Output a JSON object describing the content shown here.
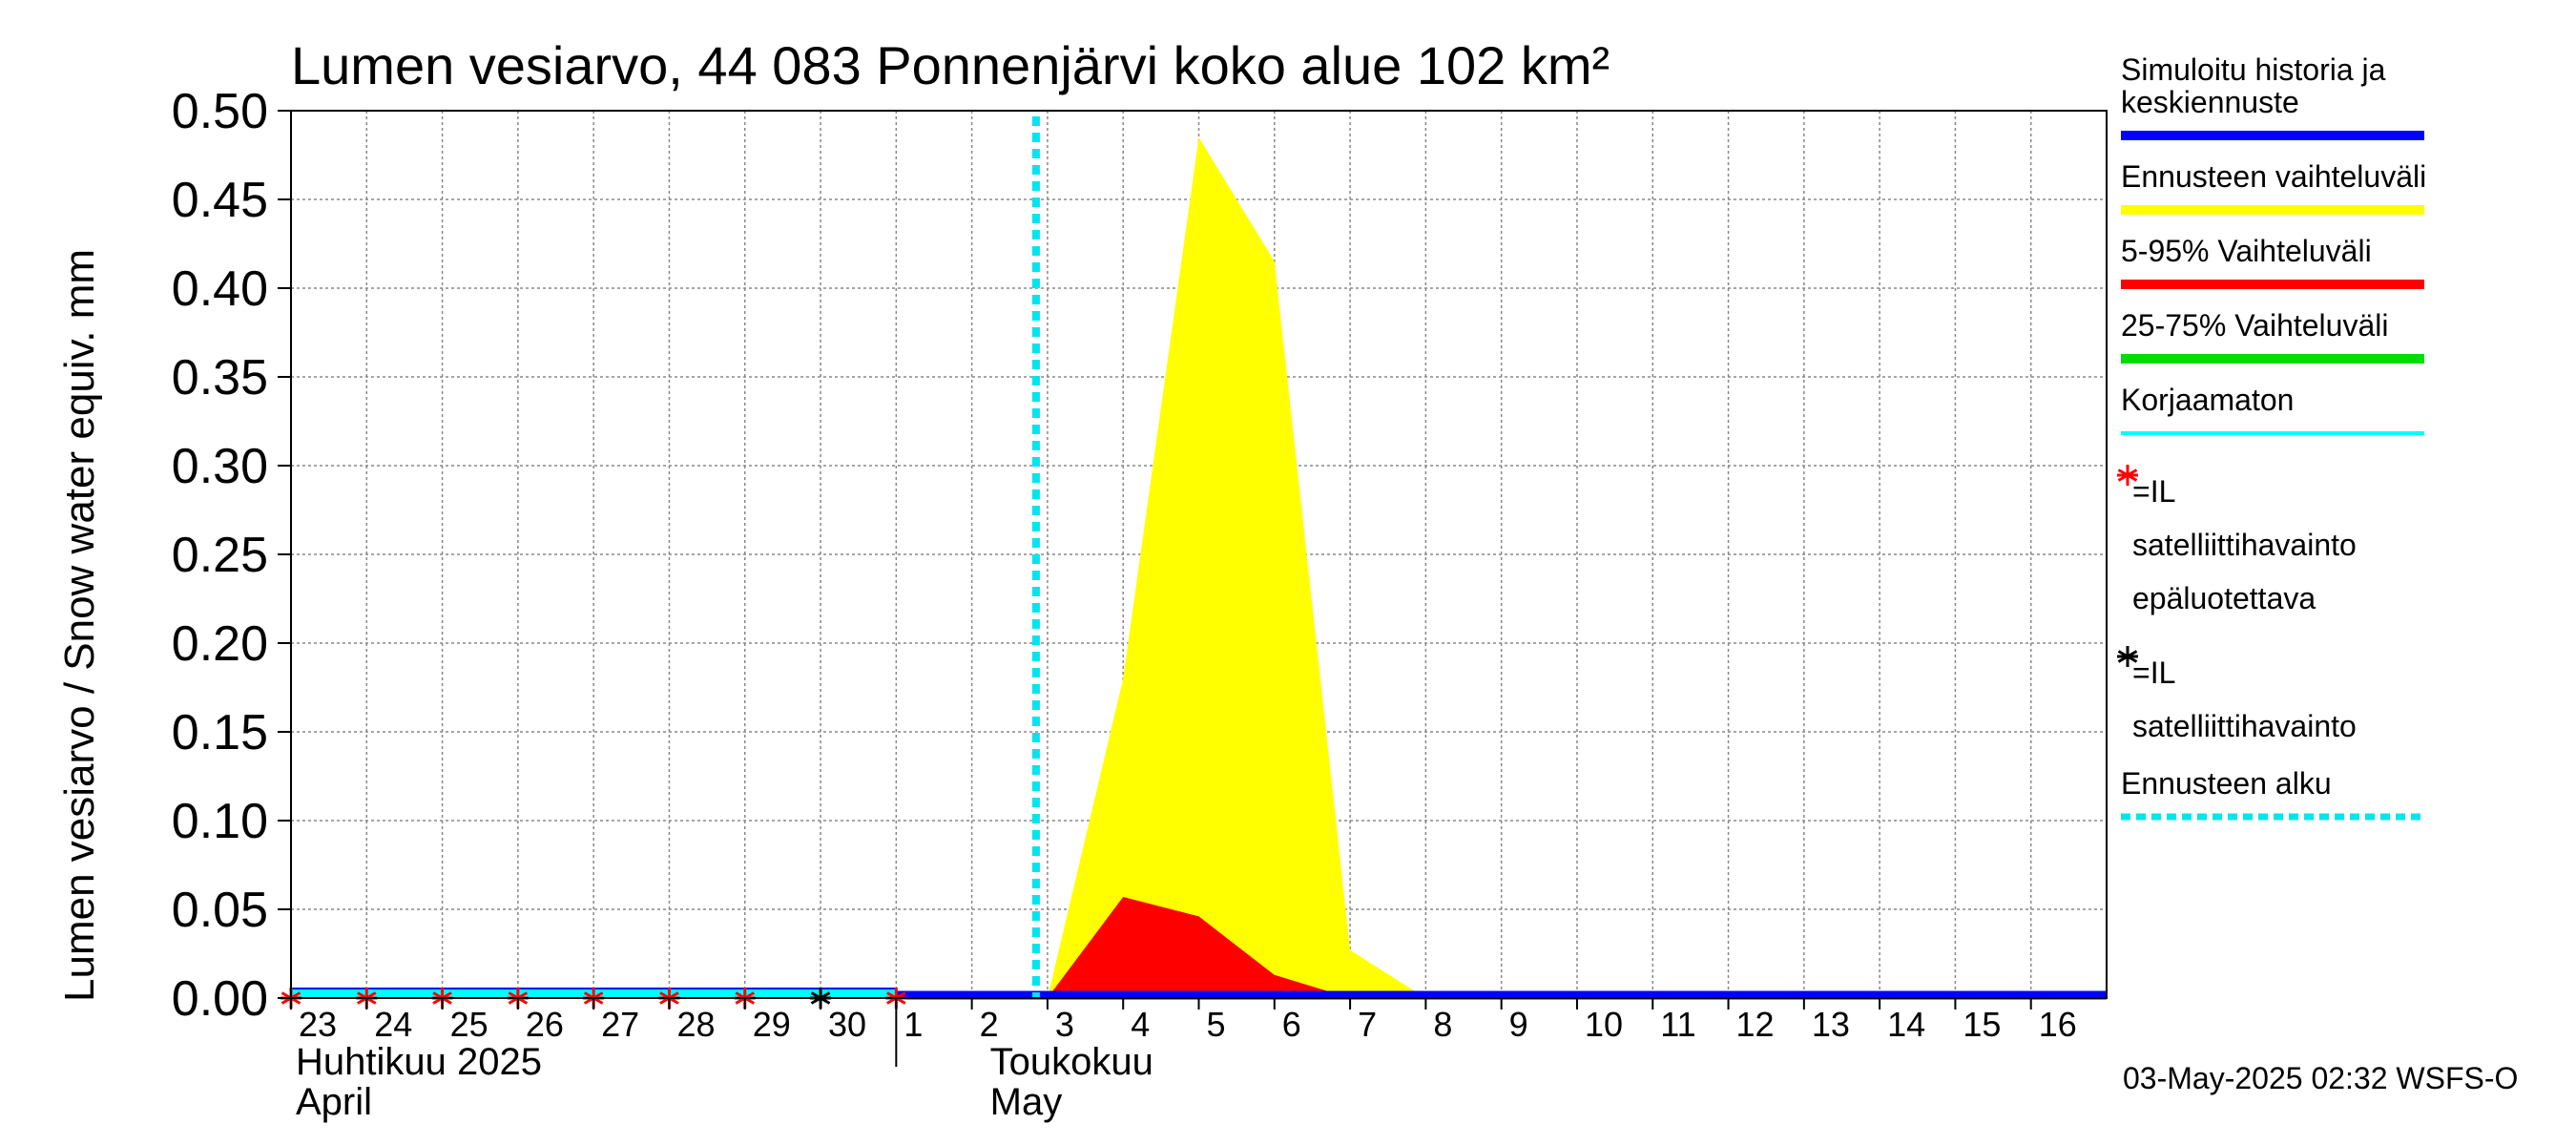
{
  "chart_data": {
    "type": "area",
    "title": "Lumen vesiarvo, 44 083 Ponnenjärvi koko alue 102 km²",
    "ylabel": "Lumen vesiarvo / Snow water equiv.    mm",
    "ylim": [
      0,
      0.5
    ],
    "yticks": [
      "0.00",
      "0.05",
      "0.10",
      "0.15",
      "0.20",
      "0.25",
      "0.30",
      "0.35",
      "0.40",
      "0.45",
      "0.50"
    ],
    "x_days": [
      "23",
      "24",
      "25",
      "26",
      "27",
      "28",
      "29",
      "30",
      "1",
      "2",
      "3",
      "4",
      "5",
      "6",
      "7",
      "8",
      "9",
      "10",
      "11",
      "12",
      "13",
      "14",
      "15",
      "16"
    ],
    "months": [
      {
        "line1": "Huhtikuu  2025",
        "line2": "April"
      },
      {
        "line1": "Toukokuu",
        "line2": "May"
      }
    ],
    "forecast_start_day_index": 10,
    "series": [
      {
        "name": "Ennusteen vaihteluväli",
        "color": "#ffff00",
        "points": [
          [
            10,
            0.0
          ],
          [
            11,
            0.18
          ],
          [
            12,
            0.485
          ],
          [
            13,
            0.415
          ],
          [
            14,
            0.027
          ],
          [
            15,
            0.0
          ]
        ]
      },
      {
        "name": "5-95% Vaihteluväli",
        "color": "#ff0000",
        "points": [
          [
            10,
            0.0
          ],
          [
            11,
            0.057
          ],
          [
            12,
            0.046
          ],
          [
            13,
            0.013
          ],
          [
            14,
            0.0
          ]
        ]
      },
      {
        "name": "Simuloitu historia ja keskiennuste",
        "color": "#0000ff",
        "points": [
          [
            8,
            0.0
          ],
          [
            24,
            0.0
          ]
        ]
      },
      {
        "name": "Korjaamaton",
        "color": "#00ffff",
        "points": [
          [
            0,
            0.0
          ],
          [
            8,
            0.0
          ]
        ]
      }
    ],
    "observations_red": [
      0,
      1,
      2,
      3,
      4,
      5,
      6,
      8
    ],
    "observations_black": [
      7
    ],
    "legend": [
      {
        "label": "Simuloitu historia ja keskiennuste",
        "color": "#0000ff",
        "kind": "line"
      },
      {
        "label": "Ennusteen vaihteluväli",
        "color": "#ffff00",
        "kind": "line"
      },
      {
        "label": "5-95% Vaihteluväli",
        "color": "#ff0000",
        "kind": "line"
      },
      {
        "label": "25-75% Vaihteluväli",
        "color": "#00dd00",
        "kind": "line"
      },
      {
        "label": "Korjaamaton",
        "color": "#00ffff",
        "kind": "thin"
      },
      {
        "label": "=IL satelliittihavainto epäluotettava",
        "color": "#ff0000",
        "kind": "star"
      },
      {
        "label": "=IL satelliittihavainto",
        "color": "#000000",
        "kind": "star"
      },
      {
        "label": "Ennusteen alku",
        "color": "#00e5ee",
        "kind": "dashed"
      }
    ],
    "footer": "03-May-2025 02:32 WSFS-O"
  }
}
